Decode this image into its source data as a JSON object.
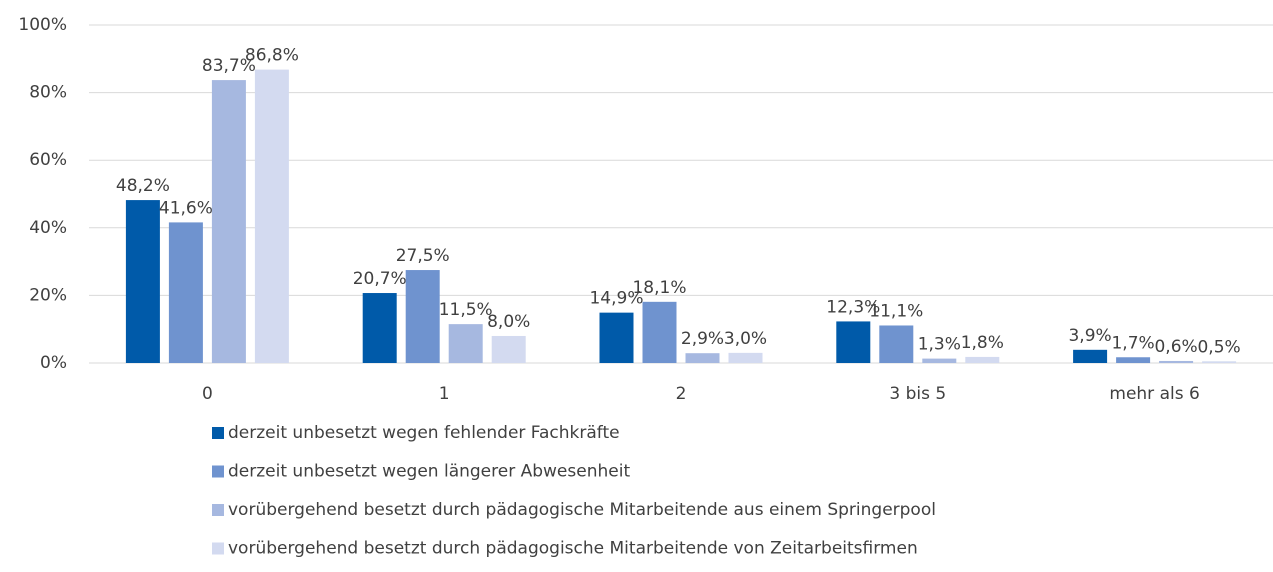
{
  "chart_data": {
    "type": "bar",
    "categories": [
      "0",
      "1",
      "2",
      "3 bis 5",
      "mehr als 6"
    ],
    "series": [
      {
        "name": "derzeit unbesetzt wegen fehlender Fachkräfte",
        "color": "#005aa9",
        "values": [
          48.2,
          20.7,
          14.9,
          12.3,
          3.9
        ],
        "value_labels": [
          "48,2%",
          "20,7%",
          "14,9%",
          "12,3%",
          "3,9%"
        ]
      },
      {
        "name": "derzeit unbesetzt wegen längerer Abwesenheit",
        "color": "#6f93cf",
        "values": [
          41.6,
          27.5,
          18.1,
          11.1,
          1.7
        ],
        "value_labels": [
          "41,6%",
          "27,5%",
          "18,1%",
          "11,1%",
          "1,7%"
        ]
      },
      {
        "name": "vorübergehend besetzt durch pädagogische Mitarbeitende aus einem Springerpool",
        "color": "#a6b8e0",
        "values": [
          83.7,
          11.5,
          2.9,
          1.3,
          0.6
        ],
        "value_labels": [
          "83,7%",
          "11,5%",
          "2,9%",
          "1,3%",
          "0,6%"
        ]
      },
      {
        "name": "vorübergehend besetzt durch pädagogische Mitarbeitende von Zeitarbeitsfirmen",
        "color": "#d3daf0",
        "values": [
          86.8,
          8.0,
          3.0,
          1.8,
          0.5
        ],
        "value_labels": [
          "86,8%",
          "8,0%",
          "3,0%",
          "1,8%",
          "0,5%"
        ]
      }
    ],
    "ylim": [
      0,
      100
    ],
    "yticks": [
      {
        "value": 0,
        "label": "0%"
      },
      {
        "value": 20,
        "label": "20%"
      },
      {
        "value": 40,
        "label": "40%"
      },
      {
        "value": 60,
        "label": "60%"
      },
      {
        "value": 80,
        "label": "80%"
      },
      {
        "value": 100,
        "label": "100%"
      }
    ],
    "grid": true
  }
}
